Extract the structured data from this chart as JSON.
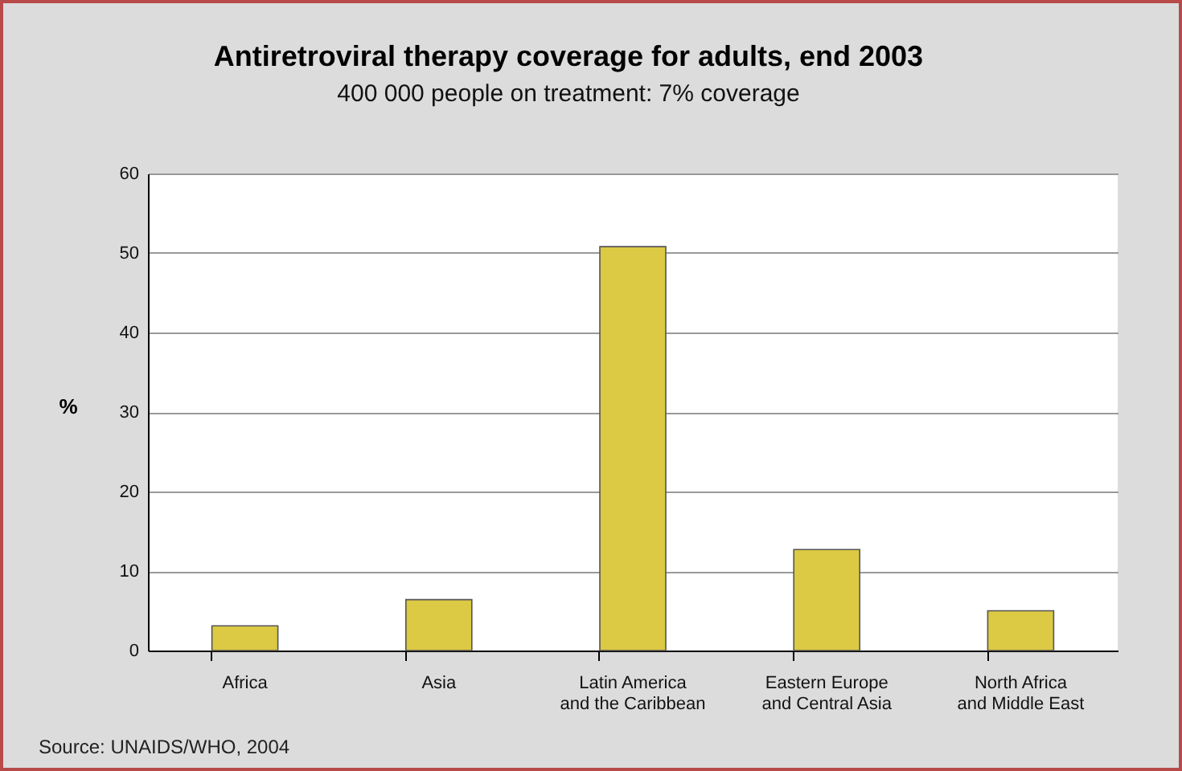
{
  "chart_data": {
    "type": "bar",
    "title": "Antiretroviral therapy coverage for adults, end 2003",
    "subtitle": "400 000 people on treatment: 7% coverage",
    "ylabel": "%",
    "categories": [
      "Africa",
      "Asia",
      "Latin America\nand the Caribbean",
      "Eastern Europe\nand Central Asia",
      "North Africa\nand Middle East"
    ],
    "values": [
      3.1,
      6.4,
      50.8,
      12.7,
      5.0
    ],
    "color": "#dcc944",
    "ylim": [
      0,
      60
    ],
    "yticks": [
      0,
      10,
      20,
      30,
      40,
      50,
      60
    ],
    "grid": "y",
    "annotations": [
      "Source: UNAIDS/WHO, 2004"
    ]
  }
}
